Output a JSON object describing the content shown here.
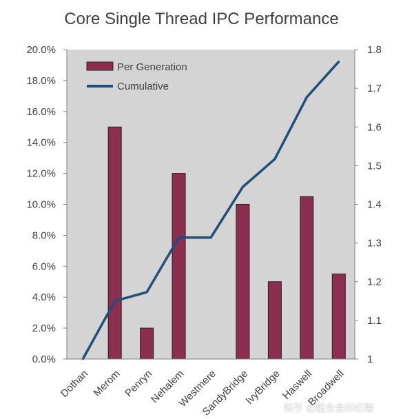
{
  "chart_data": {
    "type": "bar",
    "title": "Core Single Thread IPC Performance",
    "categories": [
      "Dothan",
      "Merom",
      "Penryn",
      "Nehalem",
      "Westmere",
      "SandyBridge",
      "IvyBridge",
      "Haswell",
      "Broadwell"
    ],
    "series": [
      {
        "name": "Per Generation",
        "type": "bar",
        "axis": "left",
        "color": "#8b2e4f",
        "values": [
          0.0,
          15.0,
          2.0,
          12.0,
          0.0,
          10.0,
          5.0,
          10.5,
          5.5
        ]
      },
      {
        "name": "Cumulative",
        "type": "line",
        "axis": "right",
        "color": "#1f4e79",
        "values": [
          1.0,
          1.15,
          1.173,
          1.314,
          1.314,
          1.445,
          1.517,
          1.677,
          1.769
        ]
      }
    ],
    "y_left": {
      "ylim": [
        0,
        20
      ],
      "ticks": [
        "0.0%",
        "2.0%",
        "4.0%",
        "6.0%",
        "8.0%",
        "10.0%",
        "12.0%",
        "14.0%",
        "16.0%",
        "18.0%",
        "20.0%"
      ]
    },
    "y_right": {
      "ylim": [
        1.0,
        1.8
      ],
      "ticks": [
        "1",
        "1.1",
        "1.2",
        "1.3",
        "1.4",
        "1.5",
        "1.6",
        "1.7",
        "1.8"
      ]
    },
    "grid": false,
    "legend_position": "top-left",
    "plot_background": "#d4d4d4"
  },
  "watermark": "知乎 @超合金彩虹糖"
}
